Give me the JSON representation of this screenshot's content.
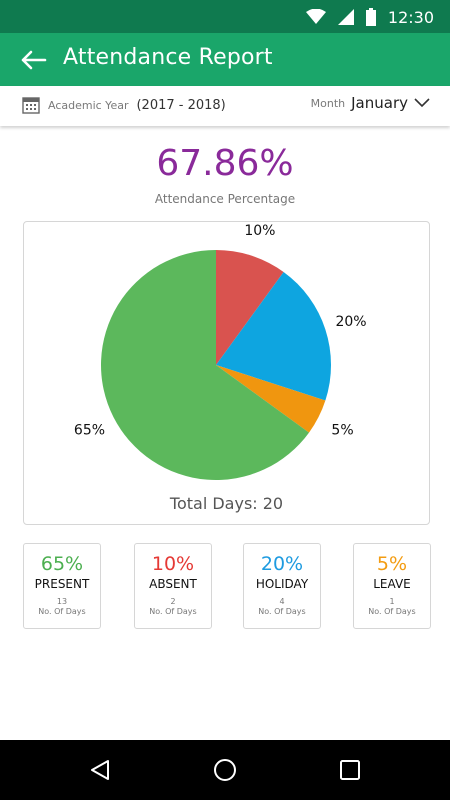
{
  "status_bar": {
    "time": "12:30"
  },
  "header": {
    "title": "Attendance Report"
  },
  "filters": {
    "year_label": "Academic Year",
    "year_value": "(2017 - 2018)",
    "month_label": "Month",
    "month_value": "January"
  },
  "summary": {
    "percentage": "67.86%",
    "percentage_label": "Attendance Percentage"
  },
  "chart_data": {
    "type": "pie",
    "slices": [
      {
        "label": "65%",
        "value": 65,
        "color": "#5cb85c",
        "category": "PRESENT"
      },
      {
        "label": "10%",
        "value": 10,
        "color": "#d9534f",
        "category": "ABSENT"
      },
      {
        "label": "20%",
        "value": 20,
        "color": "#0ea5e0",
        "category": "HOLIDAY"
      },
      {
        "label": "5%",
        "value": 5,
        "color": "#f0960f",
        "category": "LEAVE"
      }
    ],
    "footer": "Total Days: 20"
  },
  "cards": [
    {
      "percent": "65%",
      "name": "PRESENT",
      "count": "13",
      "unit": "No. Of Days",
      "color": "#4caf50"
    },
    {
      "percent": "10%",
      "name": "ABSENT",
      "count": "2",
      "unit": "No. Of Days",
      "color": "#e53935"
    },
    {
      "percent": "20%",
      "name": "HOLIDAY",
      "count": "4",
      "unit": "No. Of Days",
      "color": "#1e9be0"
    },
    {
      "percent": "5%",
      "name": "LEAVE",
      "count": "1",
      "unit": "No. Of Days",
      "color": "#f39c12"
    }
  ],
  "colors": {
    "status_bar": "#0f7a4f",
    "app_bar": "#1aa66a",
    "accent_purple": "#8a2a9a"
  }
}
